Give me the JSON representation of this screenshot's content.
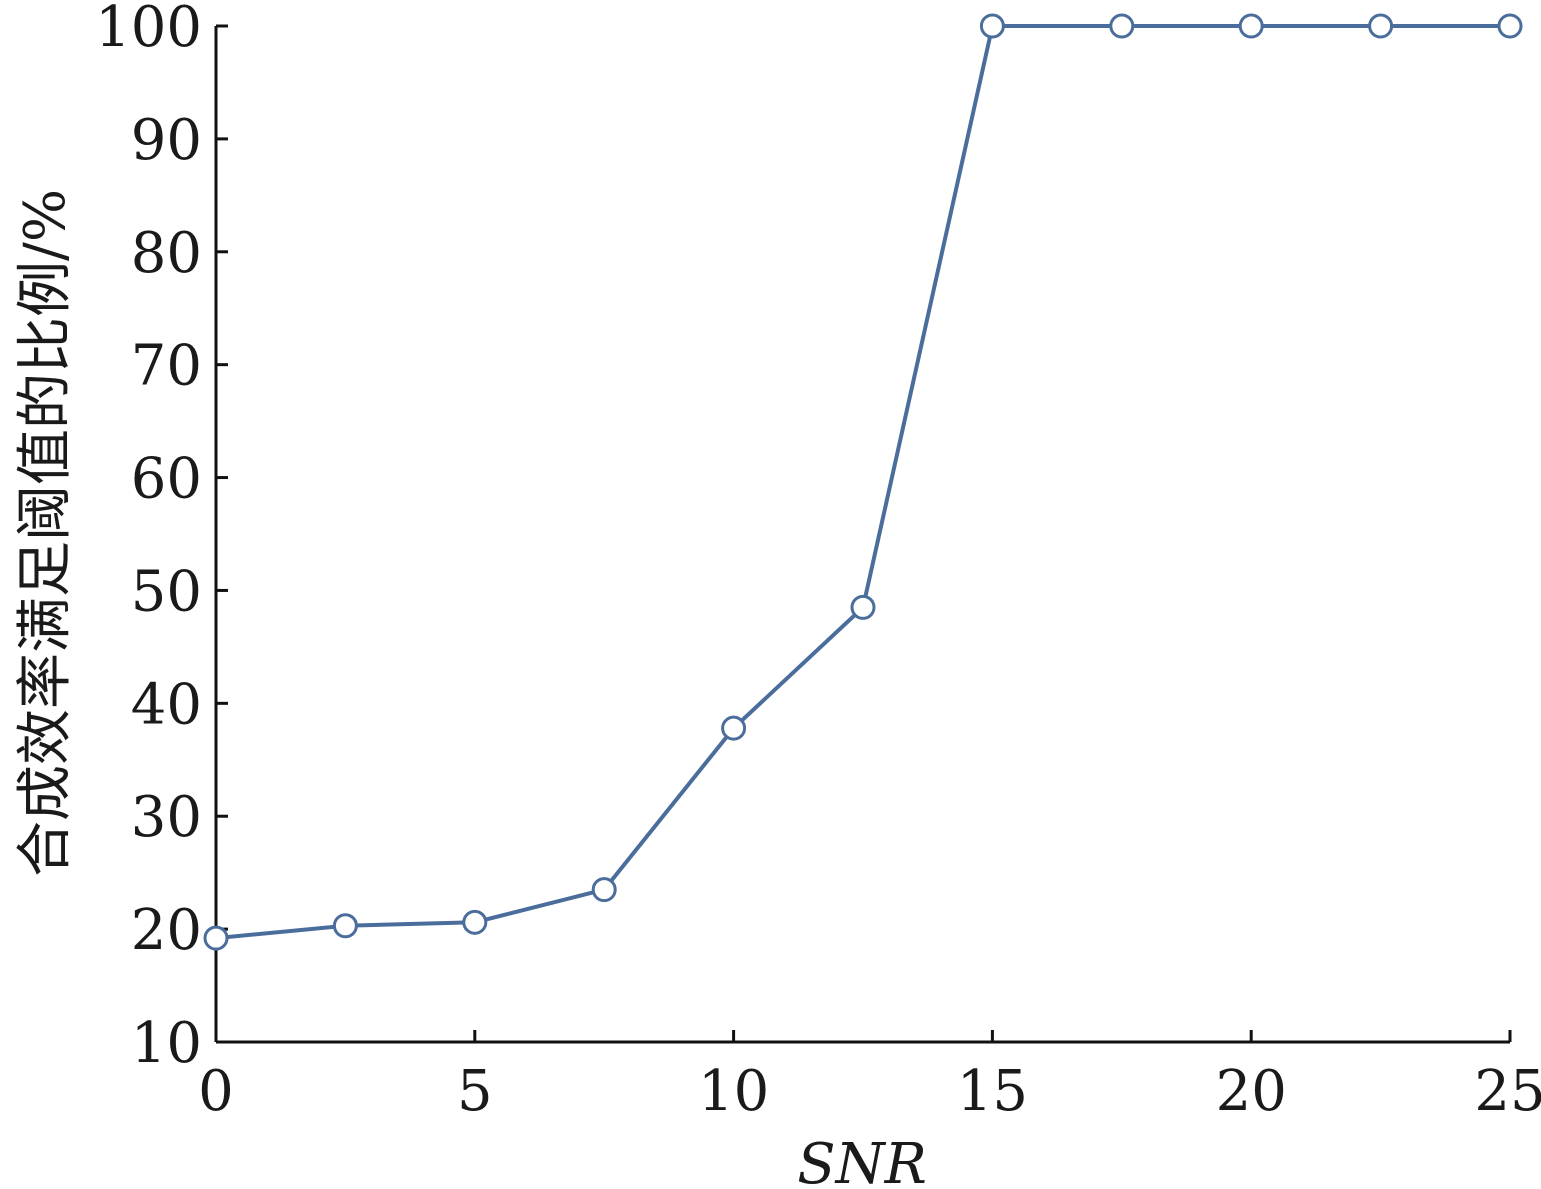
{
  "chart_data": {
    "type": "line",
    "title": "",
    "xlabel": "SNR",
    "ylabel": "合成效率满足阈值的比例/%",
    "xlim": [
      0,
      25
    ],
    "ylim": [
      10,
      100
    ],
    "xticks": [
      0,
      5,
      10,
      15,
      20,
      25
    ],
    "yticks": [
      10,
      20,
      30,
      40,
      50,
      60,
      70,
      80,
      90,
      100
    ],
    "grid": false,
    "legend": "none",
    "series": [
      {
        "x": [
          0,
          2.5,
          5,
          7.5,
          10,
          12.5,
          15,
          17.5,
          20,
          22.5,
          25
        ],
        "y": [
          19.2,
          20.3,
          20.6,
          23.5,
          37.8,
          48.5,
          100,
          100,
          100,
          100,
          100
        ],
        "marker": "circle-open",
        "color": "#4a6d9c"
      }
    ]
  }
}
